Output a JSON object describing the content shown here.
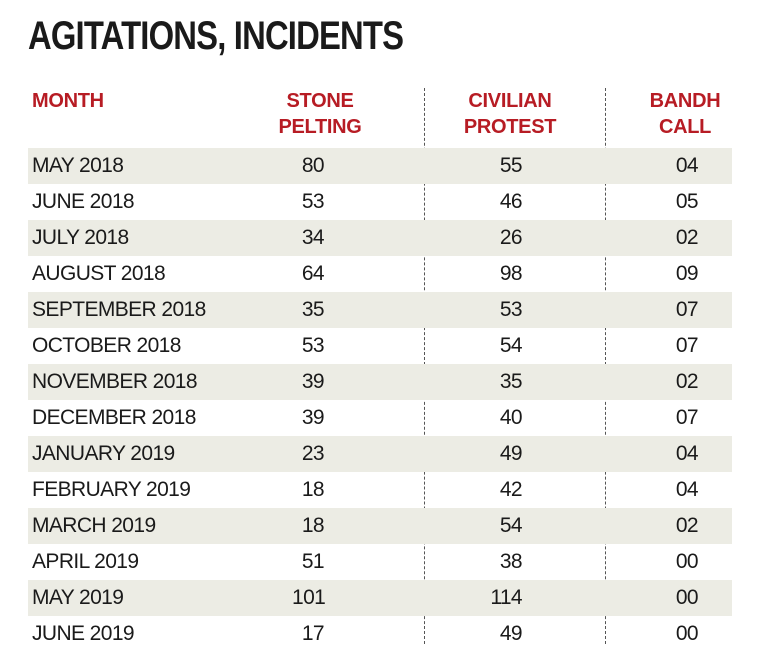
{
  "title": "AGITATIONS, INCIDENTS",
  "headers": {
    "month": "MONTH",
    "stone_line1": "STONE",
    "stone_line2": "PELTING",
    "civilian_line1": "CIVILIAN",
    "civilian_line2": "PROTEST",
    "bandh_line1": "BANDH",
    "bandh_line2": "CALL"
  },
  "colors": {
    "header_red": "#b71c24",
    "stripe": "#ecece4"
  },
  "rows": [
    {
      "month": "MAY 2018",
      "stone": "80",
      "civilian": "55",
      "bandh": "04"
    },
    {
      "month": "JUNE 2018",
      "stone": "53",
      "civilian": "46",
      "bandh": "05"
    },
    {
      "month": "JULY 2018",
      "stone": "34",
      "civilian": "26",
      "bandh": "02"
    },
    {
      "month": "AUGUST 2018",
      "stone": "64",
      "civilian": "98",
      "bandh": "09"
    },
    {
      "month": "SEPTEMBER 2018",
      "stone": "35",
      "civilian": "53",
      "bandh": "07"
    },
    {
      "month": "OCTOBER 2018",
      "stone": "53",
      "civilian": "54",
      "bandh": "07"
    },
    {
      "month": "NOVEMBER 2018",
      "stone": "39",
      "civilian": "35",
      "bandh": "02"
    },
    {
      "month": "DECEMBER 2018",
      "stone": "39",
      "civilian": "40",
      "bandh": "07"
    },
    {
      "month": "JANUARY 2019",
      "stone": "23",
      "civilian": "49",
      "bandh": "04"
    },
    {
      "month": "FEBRUARY 2019",
      "stone": "18",
      "civilian": "42",
      "bandh": "04"
    },
    {
      "month": "MARCH 2019",
      "stone": "18",
      "civilian": "54",
      "bandh": "02"
    },
    {
      "month": "APRIL 2019",
      "stone": "51",
      "civilian": "38",
      "bandh": "00"
    },
    {
      "month": "MAY 2019",
      "stone": "101",
      "civilian": "114",
      "bandh": "00"
    },
    {
      "month": "JUNE 2019",
      "stone": "17",
      "civilian": "49",
      "bandh": "00"
    }
  ]
}
